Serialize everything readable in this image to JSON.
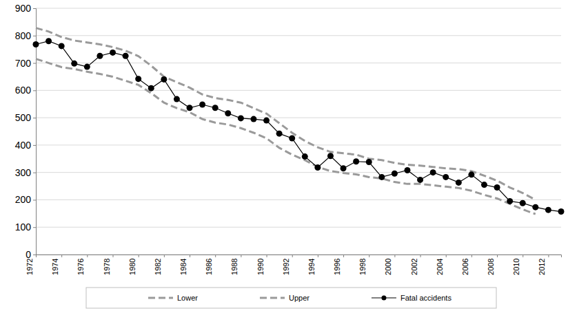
{
  "chart_data": {
    "type": "line",
    "x": [
      1972,
      1973,
      1974,
      1975,
      1976,
      1977,
      1978,
      1979,
      1980,
      1981,
      1982,
      1983,
      1984,
      1985,
      1986,
      1987,
      1988,
      1989,
      1990,
      1991,
      1992,
      1993,
      1994,
      1995,
      1996,
      1997,
      1998,
      1999,
      2000,
      2001,
      2002,
      2003,
      2004,
      2005,
      2006,
      2007,
      2008,
      2009,
      2010,
      2011,
      2012,
      2013
    ],
    "series": [
      {
        "name": "Lower",
        "color": "#9a9a9a",
        "line_style": "dashed",
        "marker": "none",
        "values": [
          715,
          700,
          685,
          678,
          668,
          660,
          650,
          635,
          620,
          590,
          555,
          535,
          520,
          495,
          482,
          475,
          462,
          445,
          425,
          390,
          365,
          345,
          320,
          305,
          298,
          293,
          283,
          278,
          265,
          258,
          258,
          253,
          248,
          243,
          233,
          218,
          205,
          185,
          165,
          148,
          null,
          null
        ]
      },
      {
        "name": "Upper",
        "color": "#9a9a9a",
        "line_style": "dashed",
        "marker": "none",
        "values": [
          828,
          815,
          795,
          782,
          775,
          768,
          758,
          745,
          725,
          690,
          650,
          630,
          610,
          585,
          572,
          565,
          555,
          535,
          515,
          480,
          445,
          415,
          392,
          375,
          370,
          365,
          350,
          345,
          335,
          328,
          325,
          320,
          315,
          312,
          305,
          288,
          270,
          245,
          225,
          200,
          null,
          null
        ]
      },
      {
        "name": "Fatal accidents",
        "color": "#000000",
        "line_style": "solid",
        "marker": "circle",
        "values": [
          768,
          780,
          762,
          698,
          686,
          726,
          738,
          726,
          642,
          608,
          640,
          568,
          536,
          548,
          536,
          516,
          498,
          495,
          490,
          442,
          425,
          358,
          318,
          360,
          315,
          340,
          338,
          283,
          296,
          308,
          273,
          300,
          283,
          263,
          292,
          255,
          245,
          195,
          188,
          173,
          163,
          157
        ]
      }
    ],
    "xlim": [
      1972,
      2013
    ],
    "xticks": [
      1972,
      1974,
      1976,
      1978,
      1980,
      1982,
      1984,
      1986,
      1988,
      1990,
      1992,
      1994,
      1996,
      1998,
      2000,
      2002,
      2004,
      2006,
      2008,
      2010,
      2012
    ],
    "ylim": [
      0,
      900
    ],
    "yticks": [
      0,
      100,
      200,
      300,
      400,
      500,
      600,
      700,
      800,
      900
    ],
    "grid": true,
    "legend": "bottom"
  }
}
